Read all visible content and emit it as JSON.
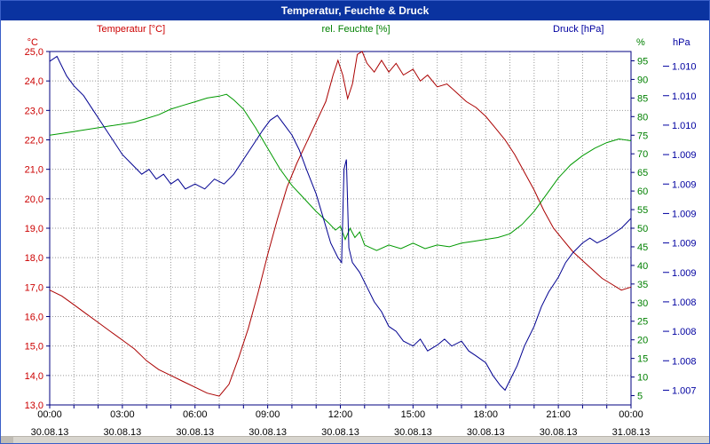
{
  "window": {
    "title": "Temperatur, Feuchte & Druck"
  },
  "colors": {
    "titlebar_bg": "#0a33a0",
    "titlebar_text": "#ffffff",
    "frame_border": "#3a5fc8",
    "plot_border": "#000080",
    "grid": "#999999",
    "temp": "#cc0000",
    "hum": "#008000",
    "pres": "#0000a0"
  },
  "chart_data": {
    "type": "line",
    "title": "Temperatur, Feuchte & Druck",
    "grid": "dotted, hourly vertical lines and 1 degC horizontal lines",
    "x_range": [
      0,
      24
    ],
    "x_ticks": [
      {
        "h": 0,
        "time": "00:00",
        "date": "30.08.13"
      },
      {
        "h": 3,
        "time": "03:00",
        "date": "30.08.13"
      },
      {
        "h": 6,
        "time": "06:00",
        "date": "30.08.13"
      },
      {
        "h": 9,
        "time": "09:00",
        "date": "30.08.13"
      },
      {
        "h": 12,
        "time": "12:00",
        "date": "30.08.13"
      },
      {
        "h": 15,
        "time": "15:00",
        "date": "30.08.13"
      },
      {
        "h": 18,
        "time": "18:00",
        "date": "30.08.13"
      },
      {
        "h": 21,
        "time": "21:00",
        "date": "30.08.13"
      },
      {
        "h": 24,
        "time": "00:00",
        "date": "31.08.13"
      }
    ],
    "axes": {
      "temp": {
        "label": "Temperatur [°C]",
        "unit": "°C",
        "side": "left",
        "min": 13.0,
        "max": 25.0,
        "ticks": [
          25,
          24,
          23,
          22,
          21,
          20,
          19,
          18,
          17,
          16,
          15,
          14,
          13
        ],
        "tick_labels": [
          "25,0",
          "24,0",
          "23,0",
          "22,0",
          "21,0",
          "20,0",
          "19,0",
          "18,0",
          "17,0",
          "16,0",
          "15,0",
          "14,0",
          "13,0"
        ]
      },
      "hum": {
        "label": "rel. Feuchte [%]",
        "unit": "%",
        "side": "right",
        "min": 2.5,
        "max": 97.5,
        "ticks": [
          95,
          90,
          85,
          80,
          75,
          70,
          65,
          60,
          55,
          50,
          45,
          40,
          35,
          30,
          25,
          20,
          15,
          10,
          5
        ]
      },
      "pres": {
        "label": "Druck [hPa]",
        "unit": "hPa",
        "side": "far-right",
        "min": 1006.95,
        "max": 1010.55,
        "ticks": [
          {
            "value": 1010.4,
            "label": "1.010"
          },
          {
            "value": 1010.1,
            "label": "1.010"
          },
          {
            "value": 1009.8,
            "label": "1.010"
          },
          {
            "value": 1009.5,
            "label": "1.009"
          },
          {
            "value": 1009.2,
            "label": "1.009"
          },
          {
            "value": 1008.9,
            "label": "1.009"
          },
          {
            "value": 1008.6,
            "label": "1.009"
          },
          {
            "value": 1008.3,
            "label": "1.009"
          },
          {
            "value": 1008.0,
            "label": "1.008"
          },
          {
            "value": 1007.7,
            "label": "1.008"
          },
          {
            "value": 1007.4,
            "label": "1.008"
          },
          {
            "value": 1007.1,
            "label": "1.007"
          }
        ]
      }
    },
    "series": [
      {
        "name": "Temperatur",
        "axis": "temp",
        "color": "#aa0000",
        "points": [
          [
            0,
            16.9
          ],
          [
            0.5,
            16.7
          ],
          [
            1,
            16.4
          ],
          [
            1.5,
            16.1
          ],
          [
            2,
            15.8
          ],
          [
            2.5,
            15.5
          ],
          [
            3,
            15.2
          ],
          [
            3.5,
            14.9
          ],
          [
            4,
            14.5
          ],
          [
            4.5,
            14.2
          ],
          [
            5,
            14.0
          ],
          [
            5.5,
            13.8
          ],
          [
            6,
            13.6
          ],
          [
            6.5,
            13.4
          ],
          [
            7,
            13.3
          ],
          [
            7.4,
            13.7
          ],
          [
            7.8,
            14.6
          ],
          [
            8.2,
            15.6
          ],
          [
            8.6,
            16.8
          ],
          [
            9,
            18.1
          ],
          [
            9.4,
            19.3
          ],
          [
            9.8,
            20.4
          ],
          [
            10.2,
            21.2
          ],
          [
            10.6,
            21.9
          ],
          [
            11,
            22.6
          ],
          [
            11.4,
            23.3
          ],
          [
            11.7,
            24.2
          ],
          [
            11.9,
            24.7
          ],
          [
            12.1,
            24.2
          ],
          [
            12.3,
            23.4
          ],
          [
            12.5,
            23.9
          ],
          [
            12.7,
            24.9
          ],
          [
            12.9,
            25.0
          ],
          [
            13.1,
            24.6
          ],
          [
            13.4,
            24.3
          ],
          [
            13.7,
            24.7
          ],
          [
            14,
            24.3
          ],
          [
            14.3,
            24.6
          ],
          [
            14.6,
            24.2
          ],
          [
            15,
            24.4
          ],
          [
            15.3,
            24.0
          ],
          [
            15.6,
            24.2
          ],
          [
            16,
            23.8
          ],
          [
            16.4,
            23.9
          ],
          [
            16.8,
            23.6
          ],
          [
            17.2,
            23.3
          ],
          [
            17.6,
            23.1
          ],
          [
            18,
            22.8
          ],
          [
            18.4,
            22.4
          ],
          [
            18.8,
            22.0
          ],
          [
            19.2,
            21.5
          ],
          [
            19.6,
            20.9
          ],
          [
            20,
            20.3
          ],
          [
            20.4,
            19.6
          ],
          [
            20.8,
            19.0
          ],
          [
            21.2,
            18.6
          ],
          [
            21.6,
            18.2
          ],
          [
            22,
            17.9
          ],
          [
            22.4,
            17.6
          ],
          [
            22.8,
            17.3
          ],
          [
            23.2,
            17.1
          ],
          [
            23.6,
            16.9
          ],
          [
            24,
            17.0
          ]
        ]
      },
      {
        "name": "rel. Feuchte",
        "axis": "hum",
        "color": "#009900",
        "points": [
          [
            0,
            75
          ],
          [
            0.5,
            75.5
          ],
          [
            1,
            76
          ],
          [
            1.5,
            76.5
          ],
          [
            2,
            77
          ],
          [
            2.5,
            77.5
          ],
          [
            3,
            78
          ],
          [
            3.5,
            78.5
          ],
          [
            4,
            79.5
          ],
          [
            4.5,
            80.5
          ],
          [
            5,
            82
          ],
          [
            5.5,
            83
          ],
          [
            6,
            84
          ],
          [
            6.5,
            85
          ],
          [
            7,
            85.5
          ],
          [
            7.3,
            86
          ],
          [
            7.6,
            84.5
          ],
          [
            8,
            82
          ],
          [
            8.5,
            77
          ],
          [
            9,
            71.5
          ],
          [
            9.5,
            66
          ],
          [
            10,
            61.5
          ],
          [
            10.5,
            58
          ],
          [
            11,
            54.5
          ],
          [
            11.5,
            51.5
          ],
          [
            11.8,
            49.5
          ],
          [
            12,
            50.5
          ],
          [
            12.2,
            47
          ],
          [
            12.4,
            50
          ],
          [
            12.6,
            47.5
          ],
          [
            12.8,
            49
          ],
          [
            13,
            45.5
          ],
          [
            13.5,
            44
          ],
          [
            14,
            45.5
          ],
          [
            14.5,
            44.5
          ],
          [
            15,
            46
          ],
          [
            15.5,
            44.5
          ],
          [
            16,
            45.5
          ],
          [
            16.5,
            45
          ],
          [
            17,
            46
          ],
          [
            17.5,
            46.5
          ],
          [
            18,
            47
          ],
          [
            18.5,
            47.5
          ],
          [
            19,
            48.5
          ],
          [
            19.5,
            51
          ],
          [
            20,
            54.5
          ],
          [
            20.5,
            59
          ],
          [
            21,
            63.5
          ],
          [
            21.5,
            67
          ],
          [
            22,
            69.5
          ],
          [
            22.5,
            71.5
          ],
          [
            23,
            73
          ],
          [
            23.5,
            74
          ],
          [
            24,
            73.5
          ]
        ]
      },
      {
        "name": "Druck",
        "axis": "pres",
        "color": "#000090",
        "points": [
          [
            0,
            1010.45
          ],
          [
            0.3,
            1010.5
          ],
          [
            0.7,
            1010.3
          ],
          [
            1,
            1010.2
          ],
          [
            1.4,
            1010.1
          ],
          [
            1.8,
            1009.95
          ],
          [
            2.2,
            1009.8
          ],
          [
            2.6,
            1009.65
          ],
          [
            3,
            1009.5
          ],
          [
            3.4,
            1009.4
          ],
          [
            3.8,
            1009.3
          ],
          [
            4.1,
            1009.35
          ],
          [
            4.4,
            1009.25
          ],
          [
            4.7,
            1009.3
          ],
          [
            5,
            1009.2
          ],
          [
            5.3,
            1009.25
          ],
          [
            5.6,
            1009.15
          ],
          [
            6,
            1009.2
          ],
          [
            6.4,
            1009.15
          ],
          [
            6.8,
            1009.25
          ],
          [
            7.2,
            1009.2
          ],
          [
            7.6,
            1009.3
          ],
          [
            8,
            1009.45
          ],
          [
            8.4,
            1009.6
          ],
          [
            8.8,
            1009.75
          ],
          [
            9.1,
            1009.85
          ],
          [
            9.4,
            1009.9
          ],
          [
            9.7,
            1009.8
          ],
          [
            10,
            1009.7
          ],
          [
            10.3,
            1009.55
          ],
          [
            10.6,
            1009.35
          ],
          [
            11,
            1009.1
          ],
          [
            11.3,
            1008.85
          ],
          [
            11.6,
            1008.6
          ],
          [
            11.9,
            1008.45
          ],
          [
            12.05,
            1008.4
          ],
          [
            12.15,
            1009.35
          ],
          [
            12.25,
            1009.45
          ],
          [
            12.35,
            1008.55
          ],
          [
            12.5,
            1008.4
          ],
          [
            12.8,
            1008.3
          ],
          [
            13.1,
            1008.15
          ],
          [
            13.4,
            1008.0
          ],
          [
            13.7,
            1007.9
          ],
          [
            14,
            1007.75
          ],
          [
            14.3,
            1007.7
          ],
          [
            14.6,
            1007.6
          ],
          [
            15,
            1007.55
          ],
          [
            15.3,
            1007.62
          ],
          [
            15.6,
            1007.5
          ],
          [
            16,
            1007.56
          ],
          [
            16.3,
            1007.62
          ],
          [
            16.6,
            1007.55
          ],
          [
            17,
            1007.6
          ],
          [
            17.3,
            1007.5
          ],
          [
            17.6,
            1007.45
          ],
          [
            18,
            1007.38
          ],
          [
            18.3,
            1007.25
          ],
          [
            18.6,
            1007.15
          ],
          [
            18.8,
            1007.1
          ],
          [
            19,
            1007.2
          ],
          [
            19.3,
            1007.35
          ],
          [
            19.6,
            1007.55
          ],
          [
            20,
            1007.75
          ],
          [
            20.3,
            1007.95
          ],
          [
            20.6,
            1008.1
          ],
          [
            21,
            1008.25
          ],
          [
            21.3,
            1008.4
          ],
          [
            21.6,
            1008.5
          ],
          [
            22,
            1008.6
          ],
          [
            22.3,
            1008.65
          ],
          [
            22.6,
            1008.6
          ],
          [
            23,
            1008.65
          ],
          [
            23.3,
            1008.7
          ],
          [
            23.6,
            1008.75
          ],
          [
            23.8,
            1008.8
          ],
          [
            24,
            1008.85
          ]
        ]
      }
    ]
  }
}
